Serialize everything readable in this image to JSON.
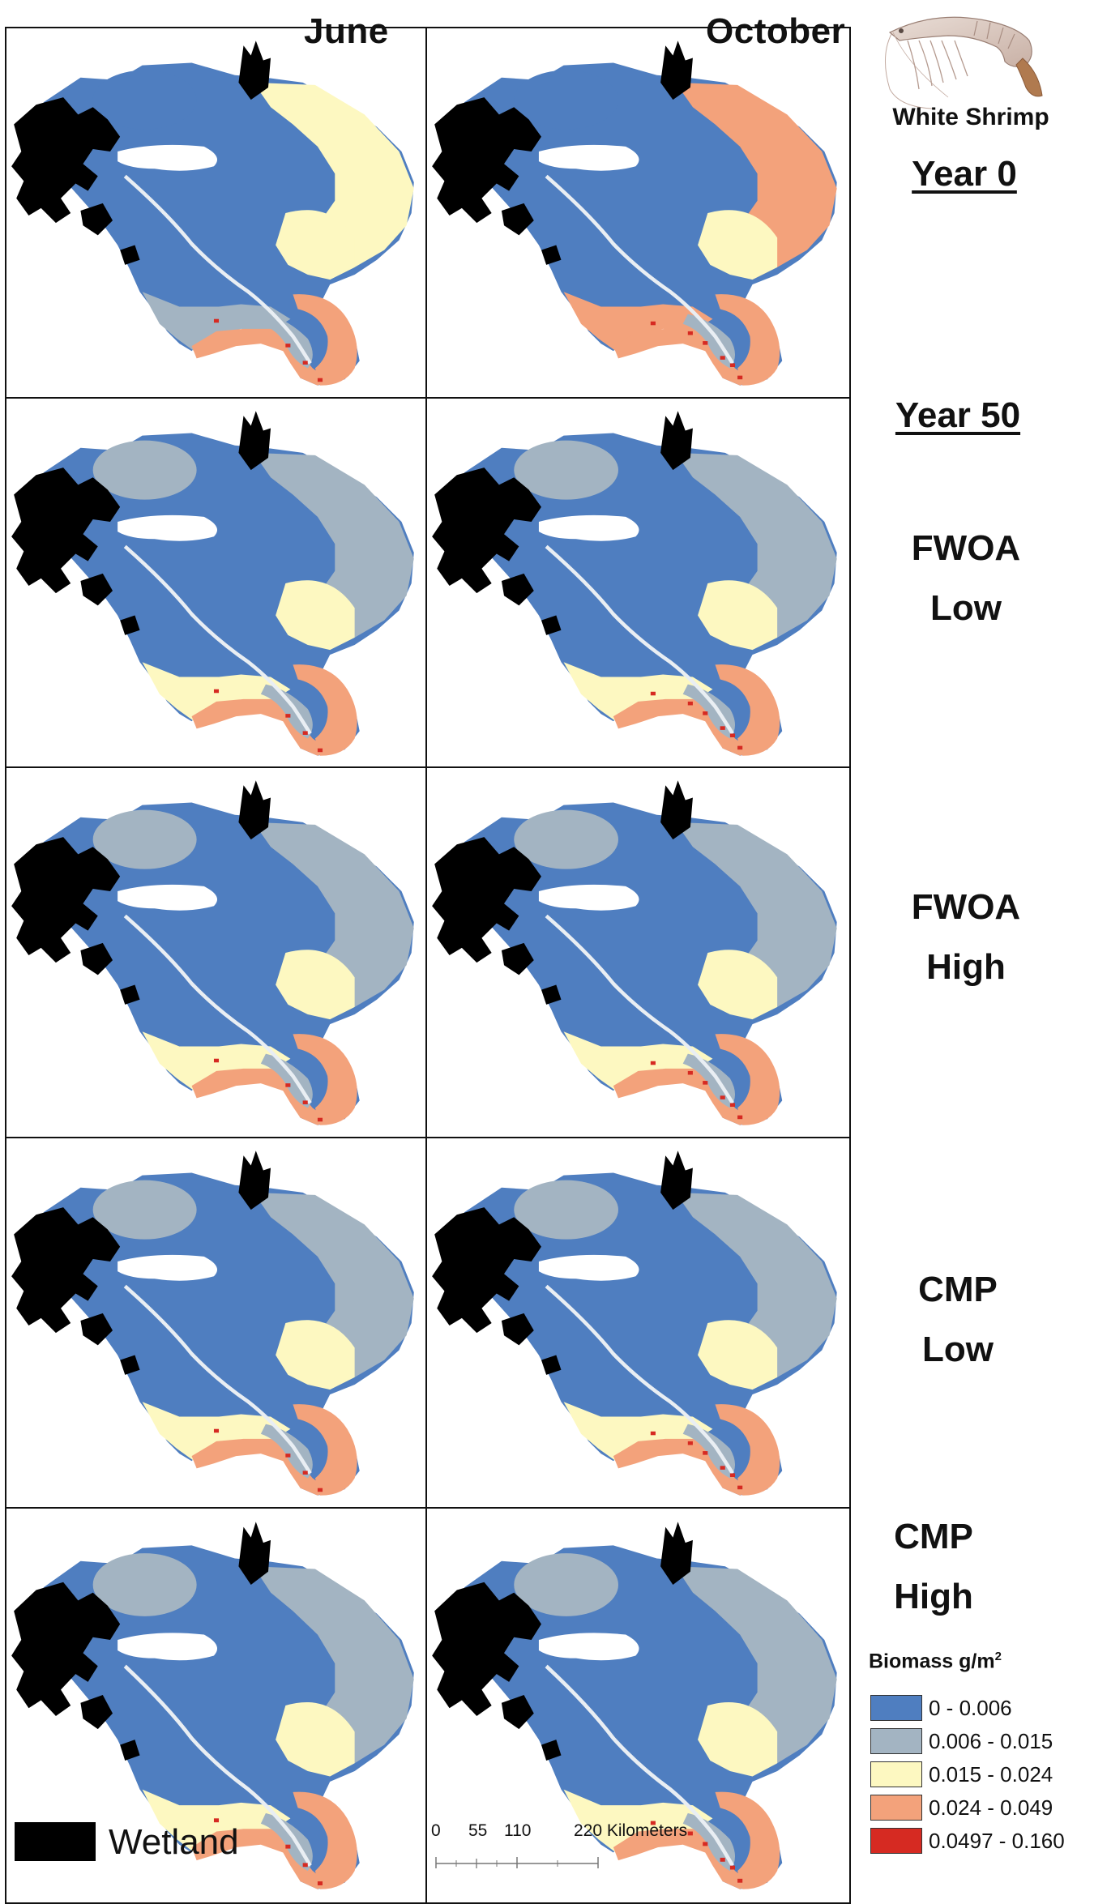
{
  "figure": {
    "species_label": "White Shrimp",
    "columns": [
      "June",
      "October"
    ],
    "rows": [
      {
        "key": "year0",
        "label_lines": [
          "Year 0"
        ],
        "underlined": true
      },
      {
        "key": "fwoa_low",
        "label_lines": [
          "FWOA",
          "Low"
        ],
        "underlined": false,
        "prefix_label": "Year 50"
      },
      {
        "key": "fwoa_high",
        "label_lines": [
          "FWOA",
          "High"
        ],
        "underlined": false
      },
      {
        "key": "cmp_low",
        "label_lines": [
          "CMP",
          "Low"
        ],
        "underlined": false
      },
      {
        "key": "cmp_high",
        "label_lines": [
          "CMP",
          "High"
        ],
        "underlined": false
      }
    ],
    "year0_label": "Year 0",
    "year50_label": "Year 50",
    "scenarios": {
      "fwoa_low": [
        "FWOA",
        "Low"
      ],
      "fwoa_high": [
        "FWOA",
        "High"
      ],
      "cmp_low": [
        "CMP",
        "Low"
      ],
      "cmp_high": [
        "CMP",
        "High"
      ]
    }
  },
  "legend": {
    "title": "Biomass g/m",
    "title_superscript": "2",
    "classes": [
      {
        "label": "0 - 0.006",
        "color": "#4f7ec0"
      },
      {
        "label": "0.006 - 0.015",
        "color": "#a3b4c2"
      },
      {
        "label": "0.015 - 0.024",
        "color": "#fdf8c1"
      },
      {
        "label": "0.024 - 0.049",
        "color": "#f3a27b"
      },
      {
        "label": "0.0497 - 0.160",
        "color": "#d62a22"
      }
    ]
  },
  "wetland": {
    "label": "Wetland",
    "color": "#000000"
  },
  "scalebar": {
    "ticks": [
      "0",
      "55",
      "110",
      "220 Kilometers"
    ]
  },
  "colors": {
    "low": "#4f7ec0",
    "lowmid": "#a3b4c2",
    "mid": "#fdf8c1",
    "high": "#f3a27b",
    "veryhigh": "#d62a22",
    "wetland": "#000000"
  }
}
